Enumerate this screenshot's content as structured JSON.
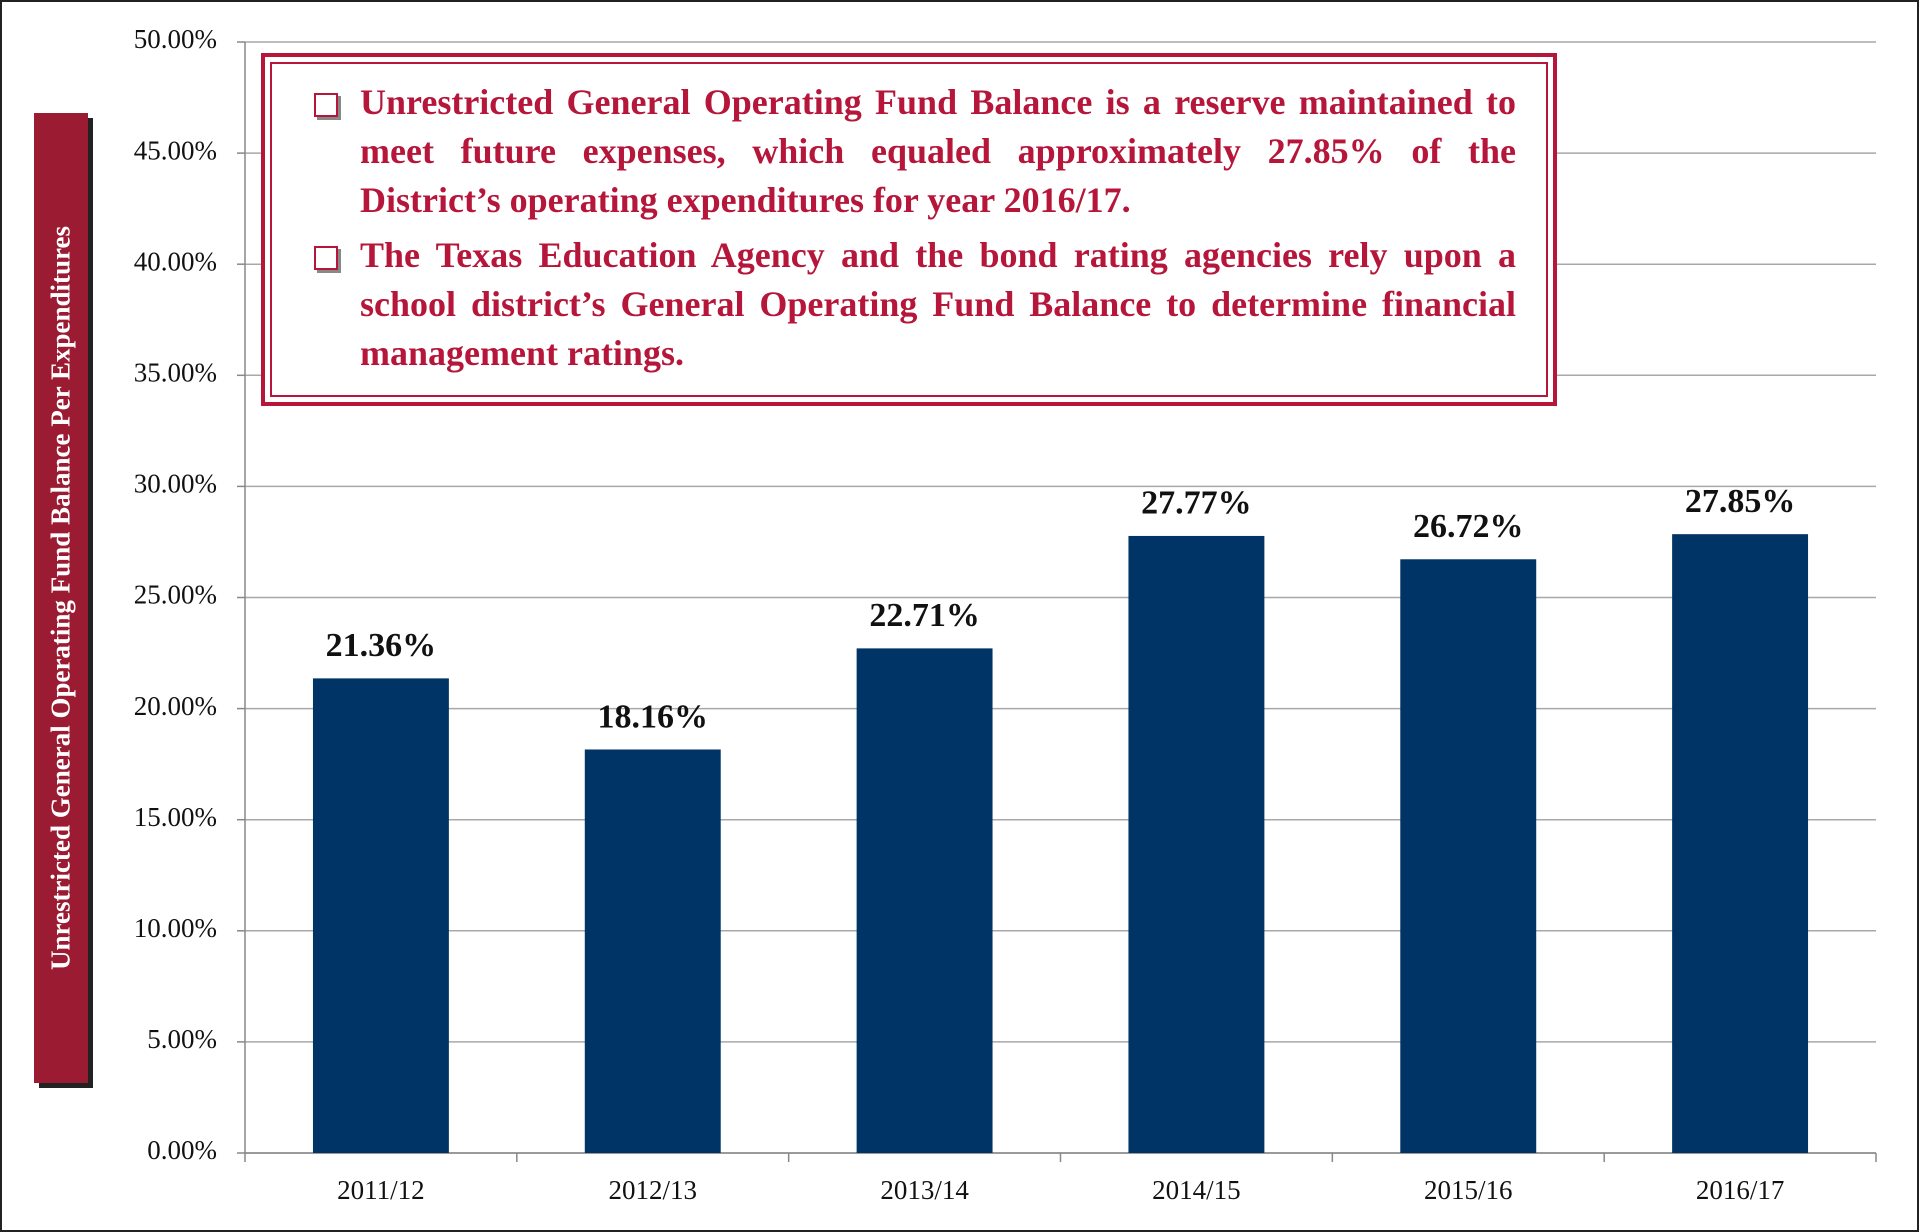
{
  "chart_data": {
    "type": "bar",
    "y_axis_label": "Unrestricted General Operating Fund Balance Per Expenditures",
    "annotations": [
      "Unrestricted General Operating Fund Balance is a reserve maintained to meet future expenses, which equaled approximately 27.85% of the District’s operating expenditures for year 2016/17.",
      "The Texas Education Agency and the bond rating agencies rely upon a school district’s General Operating Fund Balance to determine financial management ratings."
    ],
    "categories": [
      "2011/12",
      "2012/13",
      "2013/14",
      "2014/15",
      "2015/16",
      "2016/17"
    ],
    "values": [
      21.36,
      18.16,
      22.71,
      27.77,
      26.72,
      27.85
    ],
    "value_labels": [
      "21.36%",
      "18.16%",
      "22.71%",
      "27.77%",
      "26.72%",
      "27.85%"
    ],
    "color": "#003366",
    "ylim": [
      0,
      50
    ],
    "yticks": [
      {
        "value": 0,
        "label": "0.00%"
      },
      {
        "value": 5,
        "label": "5.00%"
      },
      {
        "value": 10,
        "label": "10.00%"
      },
      {
        "value": 15,
        "label": "15.00%"
      },
      {
        "value": 20,
        "label": "20.00%"
      },
      {
        "value": 25,
        "label": "25.00%"
      },
      {
        "value": 30,
        "label": "30.00%"
      },
      {
        "value": 35,
        "label": "35.00%"
      },
      {
        "value": 40,
        "label": "40.00%"
      },
      {
        "value": 45,
        "label": "45.00%"
      },
      {
        "value": 50,
        "label": "50.00%"
      }
    ],
    "grid": true
  }
}
